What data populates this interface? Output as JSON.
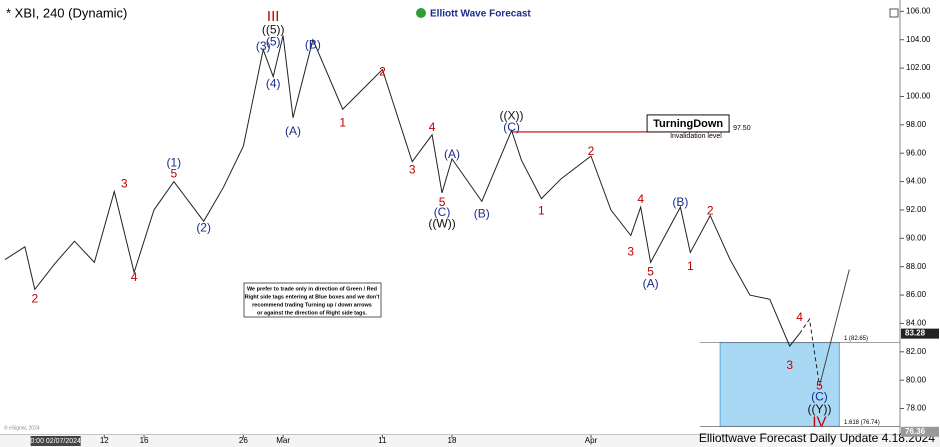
{
  "chart_data": {
    "type": "line",
    "title": "* XBI, 240 (Dynamic)",
    "brand": "Elliott Wave Forecast",
    "footer": "Elliottwave Forecast Daily Update 4.18.2024",
    "watermark": "© eSignal, 2024",
    "xlim": [
      "2024-02-02",
      "2024-05-01"
    ],
    "ylim": [
      75.5,
      106.8
    ],
    "yticks": [
      {
        "value": 78,
        "label": "78.00"
      },
      {
        "value": 80,
        "label": "80.00"
      },
      {
        "value": 82,
        "label": "82.00"
      },
      {
        "value": 84,
        "label": "84.00"
      },
      {
        "value": 86,
        "label": "86.00"
      },
      {
        "value": 88,
        "label": "88.00"
      },
      {
        "value": 90,
        "label": "90.00"
      },
      {
        "value": 92,
        "label": "92.00"
      },
      {
        "value": 94,
        "label": "94.00"
      },
      {
        "value": 96,
        "label": "96.00"
      },
      {
        "value": 98,
        "label": "98.00"
      },
      {
        "value": 100,
        "label": "100.00"
      },
      {
        "value": 102,
        "label": "102.00"
      },
      {
        "value": 104,
        "label": "104.00"
      },
      {
        "value": 106,
        "label": "106.00"
      }
    ],
    "xticks": [
      {
        "value": "2024-02-12",
        "label": "12"
      },
      {
        "value": "2024-02-16",
        "label": "16"
      },
      {
        "value": "2024-02-26",
        "label": "26"
      },
      {
        "value": "2024-03-01",
        "label": "Mar"
      },
      {
        "value": "2024-03-11",
        "label": "11"
      },
      {
        "value": "2024-03-18",
        "label": "18"
      },
      {
        "value": "2024-04-01",
        "label": "Apr"
      }
    ],
    "cursor_date": {
      "value": "2024-02-07",
      "label": "0:00 02/07/2024"
    },
    "last_price": 83.28,
    "cursor_price": 76.36,
    "series": [
      {
        "color": "#222222",
        "dash": false,
        "x": [
          "2024-02-02",
          "2024-02-04",
          "2024-02-05",
          "2024-02-07",
          "2024-02-09",
          "2024-02-11",
          "2024-02-13",
          "2024-02-15",
          "2024-02-17",
          "2024-02-19",
          "2024-02-22",
          "2024-02-24",
          "2024-02-26",
          "2024-02-28",
          "2024-02-29",
          "2024-03-01",
          "2024-03-02",
          "2024-03-04",
          "2024-03-07",
          "2024-03-09",
          "2024-03-11",
          "2024-03-14",
          "2024-03-16",
          "2024-03-17",
          "2024-03-18",
          "2024-03-21",
          "2024-03-24",
          "2024-03-25",
          "2024-03-27",
          "2024-03-29",
          "2024-04-01",
          "2024-04-03",
          "2024-04-05",
          "2024-04-06",
          "2024-04-07",
          "2024-04-10",
          "2024-04-11",
          "2024-04-13",
          "2024-04-15",
          "2024-04-17",
          "2024-04-19",
          "2024-04-21",
          "2024-04-22"
        ],
        "values": [
          88.5,
          89.4,
          86.4,
          88.2,
          89.8,
          88.3,
          93.3,
          87.6,
          92.0,
          94.0,
          91.2,
          93.6,
          96.5,
          103.3,
          101.4,
          104.3,
          98.5,
          104.0,
          99.1,
          100.5,
          101.9,
          95.4,
          97.3,
          93.2,
          95.6,
          92.6,
          97.6,
          95.5,
          92.8,
          94.2,
          95.8,
          92.0,
          90.2,
          92.2,
          88.3,
          92.2,
          89.0,
          91.6,
          88.5,
          86.0,
          85.7,
          82.4,
          83.28
        ]
      },
      {
        "color": "#222222",
        "dash": true,
        "x": [
          "2024-04-22",
          "2024-04-23",
          "2024-04-24"
        ],
        "values": [
          83.28,
          84.3,
          79.6
        ]
      },
      {
        "color": "#444444",
        "dash": false,
        "x": [
          "2024-04-24",
          "2024-04-27"
        ],
        "values": [
          79.6,
          87.8
        ]
      }
    ],
    "box": {
      "x": [
        "2024-04-14",
        "2024-04-26"
      ],
      "y": [
        76.74,
        82.65
      ],
      "color": "#a9d8f5",
      "levels": [
        {
          "value": 82.65,
          "label": "1 (82.65)"
        },
        {
          "value": 76.74,
          "label": "1.618 (76.74)"
        }
      ]
    },
    "invalidation": {
      "value": 97.5,
      "label": "97.50",
      "x": [
        "2024-03-24",
        "2024-04-15"
      ],
      "note": "Invalidation level",
      "badge": "TurningDown",
      "color": "#c00000"
    },
    "note": [
      "We prefer to trade only in direction of Green / Red",
      "Right side tags entering at Blue boxes and we don't",
      "recommend trading Turning up / down arrows",
      "or against the direction of Right side tags."
    ],
    "wave_labels": [
      {
        "text": "2",
        "x": "2024-02-05",
        "y": 85.7,
        "color": "#c00000"
      },
      {
        "text": "3",
        "x": "2024-02-14",
        "y": 93.8,
        "color": "#c00000"
      },
      {
        "text": "4",
        "x": "2024-02-15",
        "y": 87.2,
        "color": "#c00000"
      },
      {
        "text": "(1)",
        "x": "2024-02-19",
        "y": 95.3,
        "color": "#1a2d8c"
      },
      {
        "text": "5",
        "x": "2024-02-19",
        "y": 94.5,
        "color": "#c00000"
      },
      {
        "text": "(2)",
        "x": "2024-02-22",
        "y": 90.7,
        "color": "#1a2d8c"
      },
      {
        "text": "(3)",
        "x": "2024-02-28",
        "y": 103.5,
        "color": "#1a2d8c"
      },
      {
        "text": "(4)",
        "x": "2024-02-29",
        "y": 100.85,
        "color": "#1a2d8c"
      },
      {
        "text": "III",
        "x": "2024-02-29",
        "y": 105.6,
        "color": "#c00000"
      },
      {
        "text": "((5))",
        "x": "2024-02-29",
        "y": 104.66,
        "color": "#111111"
      },
      {
        "text": "(5)",
        "x": "2024-02-29",
        "y": 103.8,
        "color": "#1a2d8c"
      },
      {
        "text": "(A)",
        "x": "2024-03-02",
        "y": 97.5,
        "color": "#1a2d8c"
      },
      {
        "text": "(B)",
        "x": "2024-03-04",
        "y": 103.6,
        "color": "#1a2d8c"
      },
      {
        "text": "1",
        "x": "2024-03-07",
        "y": 98.1,
        "color": "#c00000"
      },
      {
        "text": "2",
        "x": "2024-03-11",
        "y": 101.7,
        "color": "#c00000"
      },
      {
        "text": "3",
        "x": "2024-03-14",
        "y": 94.8,
        "color": "#c00000"
      },
      {
        "text": "4",
        "x": "2024-03-16",
        "y": 97.8,
        "color": "#c00000"
      },
      {
        "text": "5",
        "x": "2024-03-17",
        "y": 92.5,
        "color": "#c00000"
      },
      {
        "text": "(C)",
        "x": "2024-03-17",
        "y": 91.8,
        "color": "#1a2d8c"
      },
      {
        "text": "((W))",
        "x": "2024-03-17",
        "y": 91.0,
        "color": "#111111"
      },
      {
        "text": "(A)",
        "x": "2024-03-18",
        "y": 95.9,
        "color": "#1a2d8c"
      },
      {
        "text": "(B)",
        "x": "2024-03-21",
        "y": 91.7,
        "color": "#1a2d8c"
      },
      {
        "text": "((X))",
        "x": "2024-03-24",
        "y": 98.6,
        "color": "#111111"
      },
      {
        "text": "(C)",
        "x": "2024-03-24",
        "y": 97.8,
        "color": "#1a2d8c"
      },
      {
        "text": "1",
        "x": "2024-03-27",
        "y": 91.9,
        "color": "#c00000"
      },
      {
        "text": "2",
        "x": "2024-04-01",
        "y": 96.1,
        "color": "#c00000"
      },
      {
        "text": "3",
        "x": "2024-04-05",
        "y": 89.0,
        "color": "#c00000"
      },
      {
        "text": "4",
        "x": "2024-04-06",
        "y": 92.7,
        "color": "#c00000"
      },
      {
        "text": "5",
        "x": "2024-04-07",
        "y": 87.6,
        "color": "#c00000"
      },
      {
        "text": "(A)",
        "x": "2024-04-07",
        "y": 86.75,
        "color": "#1a2d8c"
      },
      {
        "text": "(B)",
        "x": "2024-04-10",
        "y": 92.5,
        "color": "#1a2d8c"
      },
      {
        "text": "1",
        "x": "2024-04-11",
        "y": 88.0,
        "color": "#c00000"
      },
      {
        "text": "2",
        "x": "2024-04-13",
        "y": 91.9,
        "color": "#c00000"
      },
      {
        "text": "3",
        "x": "2024-04-21",
        "y": 81.0,
        "color": "#c00000"
      },
      {
        "text": "4",
        "x": "2024-04-22",
        "y": 84.4,
        "color": "#c00000"
      },
      {
        "text": "5",
        "x": "2024-04-24",
        "y": 79.55,
        "color": "#c00000"
      },
      {
        "text": "(C)",
        "x": "2024-04-24",
        "y": 78.8,
        "color": "#1a2d8c"
      },
      {
        "text": "((Y))",
        "x": "2024-04-24",
        "y": 77.9,
        "color": "#111111"
      },
      {
        "text": "IV",
        "x": "2024-04-24",
        "y": 77.0,
        "color": "#c00000"
      }
    ]
  }
}
